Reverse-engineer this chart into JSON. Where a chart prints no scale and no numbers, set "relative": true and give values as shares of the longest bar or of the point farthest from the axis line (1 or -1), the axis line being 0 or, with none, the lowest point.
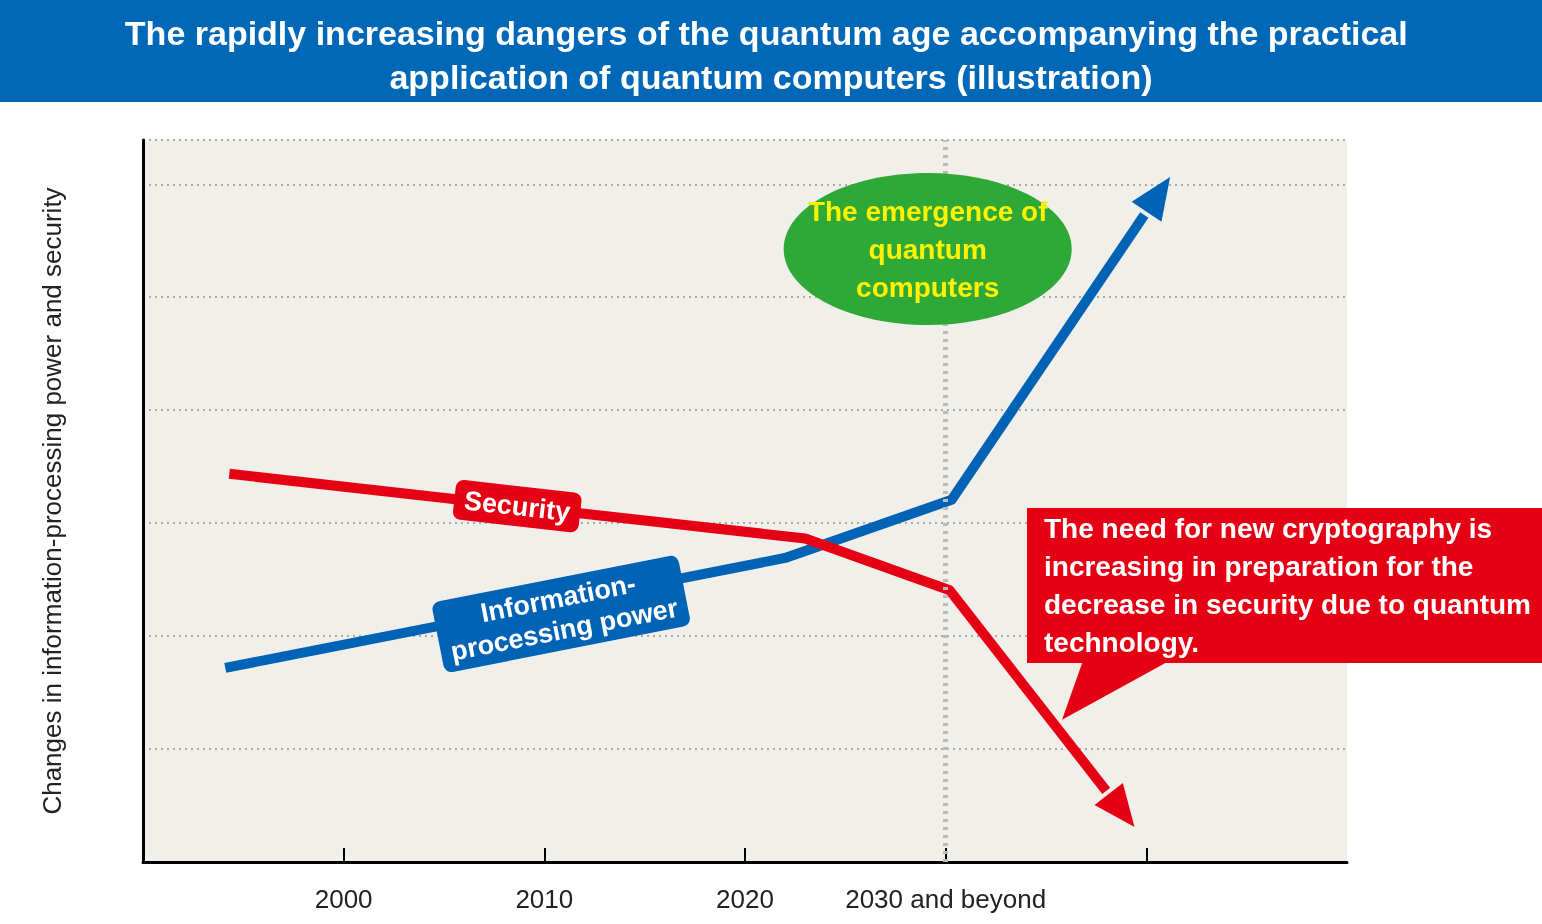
{
  "chart_data": {
    "type": "line",
    "title": "The rapidly increasing dangers of the quantum age accompanying the practical application of quantum computers (illustration)",
    "ylabel": "Changes in information-processing power and security",
    "relative": true,
    "xlim": [
      1990,
      2050
    ],
    "xticks": [
      2000,
      2010,
      2020,
      {
        "value": 2030,
        "label": "2030 and beyond"
      },
      {
        "value": 2040,
        "label": null
      }
    ],
    "grid": "y",
    "series": [
      {
        "name": "Information-processing power",
        "color": "#0063b6",
        "x": [
          1994.1,
          2022.0,
          2030.3,
          2039.9
        ],
        "values": [
          0.3,
          0.47,
          0.56,
          1
        ]
      },
      {
        "name": "Security",
        "color": "#e60013",
        "x": [
          1994.3,
          2023.0,
          2030.2,
          2038.0
        ],
        "values": [
          0.6,
          0.5,
          0.42,
          0.11
        ]
      }
    ],
    "ref_lines": [
      {
        "axis": "x",
        "value": 2030,
        "color": "#bbbbbb",
        "line_style": "dotted"
      }
    ],
    "annotations": [
      "The emergence of quantum computers",
      {
        "text": "The need for new cryptography is increasing in preparation for the decrease in security due to quantum technology.",
        "x": 2035.8,
        "y": 0.22
      }
    ]
  }
}
